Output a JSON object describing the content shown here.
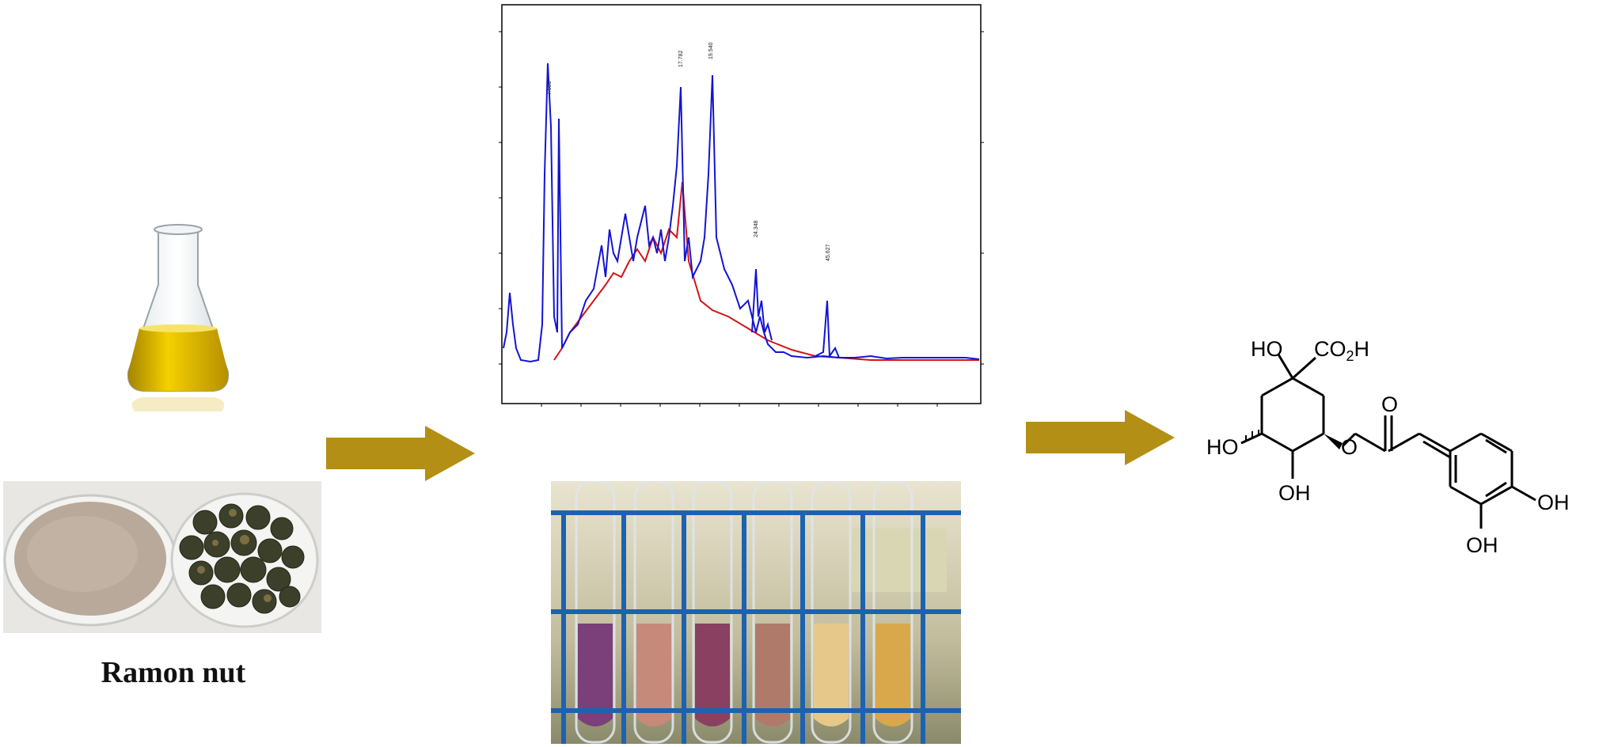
{
  "label": "Ramon nut",
  "structure": {
    "ho_top": "HO",
    "co2h": "CO",
    "co2h_sub": "2",
    "co2h_h": "H",
    "ho_left": "HO",
    "oh_bottom": "OH",
    "o_ester": "O",
    "o_carbonyl": "O",
    "oh_right": "OH",
    "oh_right_bottom": "OH"
  },
  "colors": {
    "arrow": "#b38f15",
    "trace_primary": "#1414d2",
    "trace_secondary": "#d21414",
    "oil": "#d8b500"
  }
}
